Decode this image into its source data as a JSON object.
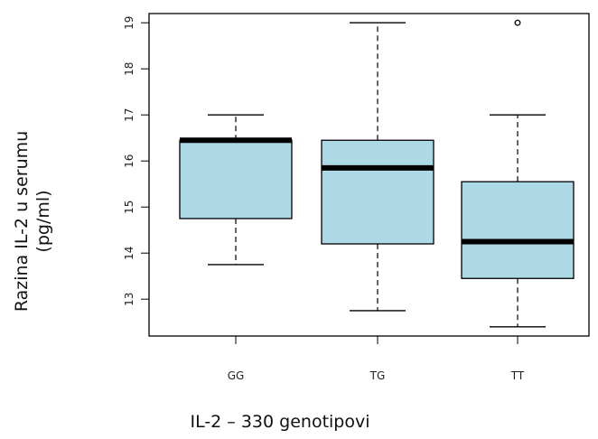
{
  "chart_data": {
    "type": "box",
    "title": "",
    "xlabel": "IL-2 – 330 genotipovi",
    "ylabel_lines": [
      "Razina IL-2 u serumu",
      "(pg/ml)"
    ],
    "ylim": [
      12.2,
      19.2
    ],
    "yticks": [
      13,
      14,
      15,
      16,
      17,
      18,
      19
    ],
    "grid": false,
    "box_color": "#add8e6",
    "categories": [
      "GG",
      "TG",
      "TT"
    ],
    "boxes": [
      {
        "category": "GG",
        "whisker_low": 13.75,
        "q1": 14.75,
        "median": 16.45,
        "q3": 16.45,
        "whisker_high": 17.0,
        "outliers": []
      },
      {
        "category": "TG",
        "whisker_low": 12.75,
        "q1": 14.2,
        "median": 15.85,
        "q3": 16.45,
        "whisker_high": 19.0,
        "outliers": []
      },
      {
        "category": "TT",
        "whisker_low": 12.4,
        "q1": 13.45,
        "median": 14.25,
        "q3": 15.55,
        "whisker_high": 17.0,
        "outliers": [
          19.0
        ]
      }
    ]
  }
}
